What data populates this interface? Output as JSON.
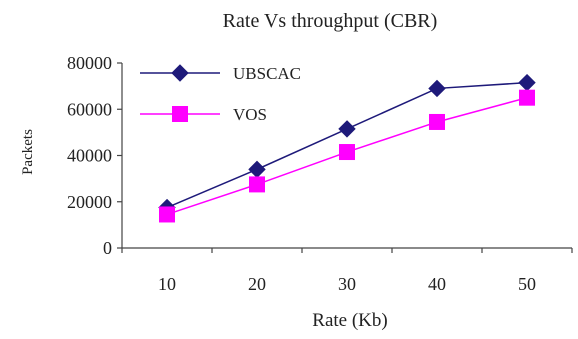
{
  "chart_data": {
    "type": "line",
    "title": "Rate Vs throughput (CBR)",
    "xlabel": "Rate (Kb)",
    "ylabel": "Packets",
    "categories": [
      "10",
      "20",
      "30",
      "40",
      "50"
    ],
    "ylim": [
      0,
      80000
    ],
    "yticks": [
      0,
      20000,
      40000,
      60000,
      80000
    ],
    "grid": false,
    "legend_position": "top-left",
    "series": [
      {
        "name": "UBSCAC",
        "values": [
          17500,
          34000,
          51500,
          69000,
          71500
        ],
        "color": "#1e1a7a",
        "marker": "diamond"
      },
      {
        "name": "VOS",
        "values": [
          14500,
          27500,
          41500,
          54500,
          65000
        ],
        "color": "#ff00ff",
        "marker": "square"
      }
    ]
  }
}
